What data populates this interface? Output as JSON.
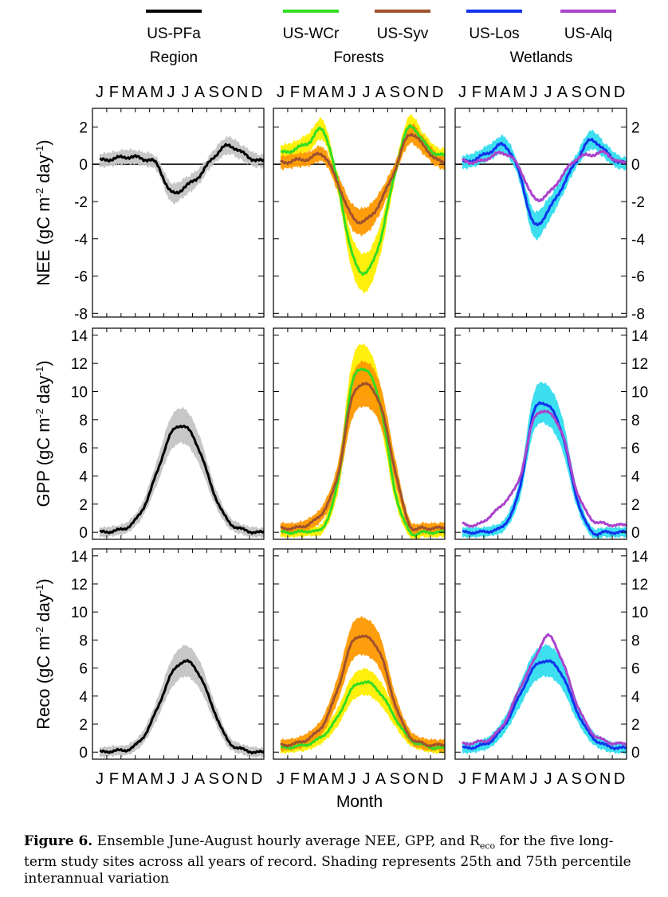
{
  "legend": {
    "groups": [
      {
        "label": "Region",
        "sites": [
          {
            "name": "US-PFa",
            "color": "#000000"
          }
        ]
      },
      {
        "label": "Forests",
        "sites": [
          {
            "name": "US-WCr",
            "color": "#33dd22"
          },
          {
            "name": "US-Syv",
            "color": "#a0522d"
          }
        ]
      },
      {
        "label": "Wetlands",
        "sites": [
          {
            "name": "US-Los",
            "color": "#1133ee"
          },
          {
            "name": "US-Alq",
            "color": "#aa44cc"
          }
        ]
      }
    ]
  },
  "month_letters": "J F M A M J J A S O N D",
  "xlabel": "Month",
  "caption": {
    "label": "Figure 6.",
    "text_before": "Ensemble June-August hourly average NEE, GPP, and R",
    "subscript": "eco",
    "text_after": " for the five long-term study sites across all years of record.  Shading represents 25th and 75th percentile interannual variation"
  },
  "rows": [
    {
      "ylabel": "NEE (gC m-2 day-1)",
      "ylabel_main": "NEE (gC m",
      "ylim": [
        -8.2,
        3
      ],
      "ticks": [
        2,
        0,
        -2,
        -4,
        -6,
        -8
      ]
    },
    {
      "ylabel": "GPP (gC m-2 day-1)",
      "ylabel_main": "GPP (gC m",
      "ylim": [
        -0.5,
        14.5
      ],
      "ticks": [
        14,
        12,
        10,
        8,
        6,
        4,
        2,
        0
      ]
    },
    {
      "ylabel": "Reco (gC m-2 day-1)",
      "ylabel_main": "Reco (gC m",
      "ylim": [
        -0.5,
        14.5
      ],
      "ticks": [
        14,
        12,
        10,
        8,
        6,
        4,
        2,
        0
      ]
    }
  ],
  "chart_data": [
    {
      "type": "line",
      "panel": "NEE Region",
      "x": [
        "Jan",
        "Feb",
        "Mar",
        "Apr",
        "May",
        "Jun",
        "Jul",
        "Aug",
        "Sep",
        "Oct",
        "Nov",
        "Dec"
      ],
      "series": [
        {
          "name": "US-PFa",
          "color": "#000000",
          "shade": "#c4c4c4",
          "values": [
            0.2,
            0.3,
            0.4,
            0.3,
            0.0,
            -1.5,
            -1.2,
            -0.6,
            0.4,
            1.0,
            0.6,
            0.2
          ]
        }
      ]
    },
    {
      "type": "line",
      "panel": "NEE Forests",
      "x": [
        "Jan",
        "Feb",
        "Mar",
        "Apr",
        "May",
        "Jun",
        "Jul",
        "Aug",
        "Sep",
        "Oct",
        "Nov",
        "Dec"
      ],
      "series": [
        {
          "name": "US-WCr",
          "color": "#33dd22",
          "shade": "#ffee00",
          "values": [
            0.6,
            0.8,
            1.2,
            1.8,
            -1.0,
            -4.8,
            -5.8,
            -4.0,
            -0.5,
            2.0,
            1.2,
            0.5
          ]
        },
        {
          "name": "US-Syv",
          "color": "#a0522d",
          "shade": "#ff9900",
          "values": [
            0.1,
            0.2,
            0.3,
            0.5,
            -1.0,
            -2.8,
            -3.0,
            -2.0,
            -0.3,
            1.6,
            1.0,
            0.2
          ]
        }
      ]
    },
    {
      "type": "line",
      "panel": "NEE Wetlands",
      "x": [
        "Jan",
        "Feb",
        "Mar",
        "Apr",
        "May",
        "Jun",
        "Jul",
        "Aug",
        "Sep",
        "Oct",
        "Nov",
        "Dec"
      ],
      "series": [
        {
          "name": "US-Los",
          "color": "#1133ee",
          "shade": "#33ddee",
          "values": [
            0.1,
            0.3,
            0.7,
            1.0,
            -0.5,
            -3.2,
            -2.5,
            -1.2,
            0.2,
            1.3,
            0.7,
            0.1
          ]
        },
        {
          "name": "US-Alq",
          "color": "#aa44cc",
          "shade": null,
          "values": [
            0.2,
            0.1,
            0.4,
            0.6,
            -0.2,
            -1.8,
            -1.6,
            -0.6,
            0.3,
            0.5,
            0.6,
            0.1
          ]
        }
      ]
    },
    {
      "type": "line",
      "panel": "GPP Region",
      "x": [
        "Jan",
        "Feb",
        "Mar",
        "Apr",
        "May",
        "Jun",
        "Jul",
        "Aug",
        "Sep",
        "Oct",
        "Nov",
        "Dec"
      ],
      "series": [
        {
          "name": "US-PFa",
          "color": "#000000",
          "shade": "#c4c4c4",
          "values": [
            0.0,
            0.1,
            0.4,
            1.6,
            4.2,
            7.0,
            7.5,
            5.8,
            2.8,
            0.8,
            0.2,
            0.0
          ]
        }
      ]
    },
    {
      "type": "line",
      "panel": "GPP Forests",
      "x": [
        "Jan",
        "Feb",
        "Mar",
        "Apr",
        "May",
        "Jun",
        "Jul",
        "Aug",
        "Sep",
        "Oct",
        "Nov",
        "Dec"
      ],
      "series": [
        {
          "name": "US-WCr",
          "color": "#33dd22",
          "shade": "#ffee00",
          "values": [
            0.0,
            0.0,
            0.1,
            0.4,
            3.5,
            10.5,
            11.5,
            9.0,
            3.0,
            0.1,
            0.0,
            0.0
          ]
        },
        {
          "name": "US-Syv",
          "color": "#a0522d",
          "shade": "#ff9900",
          "values": [
            0.3,
            0.3,
            0.6,
            1.5,
            4.0,
            9.5,
            10.5,
            9.0,
            4.5,
            0.6,
            0.3,
            0.3
          ]
        }
      ]
    },
    {
      "type": "line",
      "panel": "GPP Wetlands",
      "x": [
        "Jan",
        "Feb",
        "Mar",
        "Apr",
        "May",
        "Jun",
        "Jul",
        "Aug",
        "Sep",
        "Oct",
        "Nov",
        "Dec"
      ],
      "series": [
        {
          "name": "US-Los",
          "color": "#1133ee",
          "shade": "#33ddee",
          "values": [
            0.0,
            0.0,
            0.1,
            0.6,
            3.0,
            8.5,
            9.0,
            7.0,
            2.5,
            0.1,
            0.0,
            0.0
          ]
        },
        {
          "name": "US-Alq",
          "color": "#aa44cc",
          "shade": null,
          "values": [
            0.6,
            0.5,
            1.2,
            2.2,
            3.8,
            8.0,
            8.5,
            7.0,
            3.0,
            1.0,
            0.6,
            0.5
          ]
        }
      ]
    },
    {
      "type": "line",
      "panel": "Reco Region",
      "x": [
        "Jan",
        "Feb",
        "Mar",
        "Apr",
        "May",
        "Jun",
        "Jul",
        "Aug",
        "Sep",
        "Oct",
        "Nov",
        "Dec"
      ],
      "series": [
        {
          "name": "US-PFa",
          "color": "#000000",
          "shade": "#c4c4c4",
          "values": [
            0.0,
            0.1,
            0.2,
            1.0,
            3.0,
            5.5,
            6.5,
            5.5,
            3.0,
            0.8,
            0.2,
            0.0
          ]
        }
      ]
    },
    {
      "type": "line",
      "panel": "Reco Forests",
      "x": [
        "Jan",
        "Feb",
        "Mar",
        "Apr",
        "May",
        "Jun",
        "Jul",
        "Aug",
        "Sep",
        "Oct",
        "Nov",
        "Dec"
      ],
      "series": [
        {
          "name": "US-WCr",
          "color": "#33dd22",
          "shade": "#ffee00",
          "values": [
            0.3,
            0.4,
            0.6,
            1.2,
            2.5,
            4.5,
            5.0,
            4.2,
            2.5,
            1.0,
            0.5,
            0.3
          ]
        },
        {
          "name": "US-Syv",
          "color": "#a0522d",
          "shade": "#ff9900",
          "values": [
            0.5,
            0.6,
            1.0,
            2.0,
            4.5,
            7.8,
            8.2,
            7.0,
            3.5,
            1.2,
            0.6,
            0.5
          ]
        }
      ]
    },
    {
      "type": "line",
      "panel": "Reco Wetlands",
      "x": [
        "Jan",
        "Feb",
        "Mar",
        "Apr",
        "May",
        "Jun",
        "Jul",
        "Aug",
        "Sep",
        "Oct",
        "Nov",
        "Dec"
      ],
      "series": [
        {
          "name": "US-Los",
          "color": "#1133ee",
          "shade": "#33ddee",
          "values": [
            0.3,
            0.4,
            0.8,
            2.0,
            4.0,
            6.0,
            6.5,
            5.5,
            3.0,
            1.2,
            0.5,
            0.3
          ]
        },
        {
          "name": "US-Alq",
          "color": "#aa44cc",
          "shade": null,
          "values": [
            0.6,
            0.7,
            1.0,
            2.2,
            4.5,
            6.5,
            8.3,
            6.5,
            3.5,
            1.5,
            0.8,
            0.6
          ]
        }
      ]
    }
  ]
}
